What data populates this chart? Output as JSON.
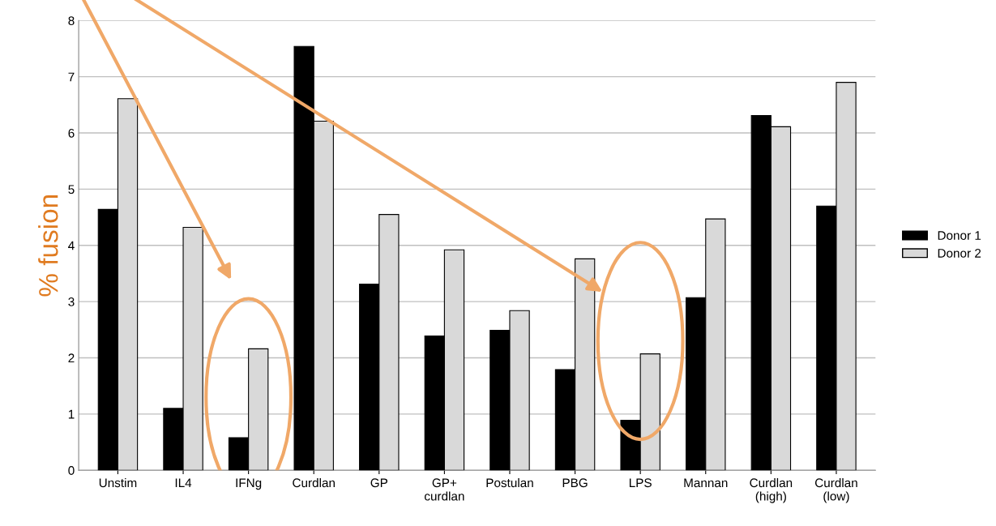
{
  "chart_data": {
    "type": "bar",
    "ylabel": "% fusion",
    "categories": [
      "Unstim",
      "IL4",
      "IFNg",
      "Curdlan",
      "GP",
      "GP+\ncurdlan",
      "Postulan",
      "PBG",
      "LPS",
      "Mannan",
      "Curdlan\n(high)",
      "Curdlan\n(low)"
    ],
    "series": [
      {
        "name": "Donor 1",
        "color": "#000000",
        "values": [
          4.64,
          1.1,
          0.58,
          7.54,
          3.31,
          2.39,
          2.49,
          1.79,
          0.89,
          3.07,
          6.31,
          4.7
        ]
      },
      {
        "name": "Donor 2",
        "color": "#d9d9d9",
        "values": [
          6.61,
          4.32,
          2.16,
          6.21,
          4.55,
          3.92,
          2.84,
          3.76,
          2.07,
          4.47,
          6.11,
          6.9
        ]
      }
    ],
    "ylim": [
      0,
      8
    ],
    "yticks": [
      0,
      1,
      2,
      3,
      4,
      5,
      6,
      7,
      8
    ],
    "grid": "y",
    "legend": "right"
  }
}
